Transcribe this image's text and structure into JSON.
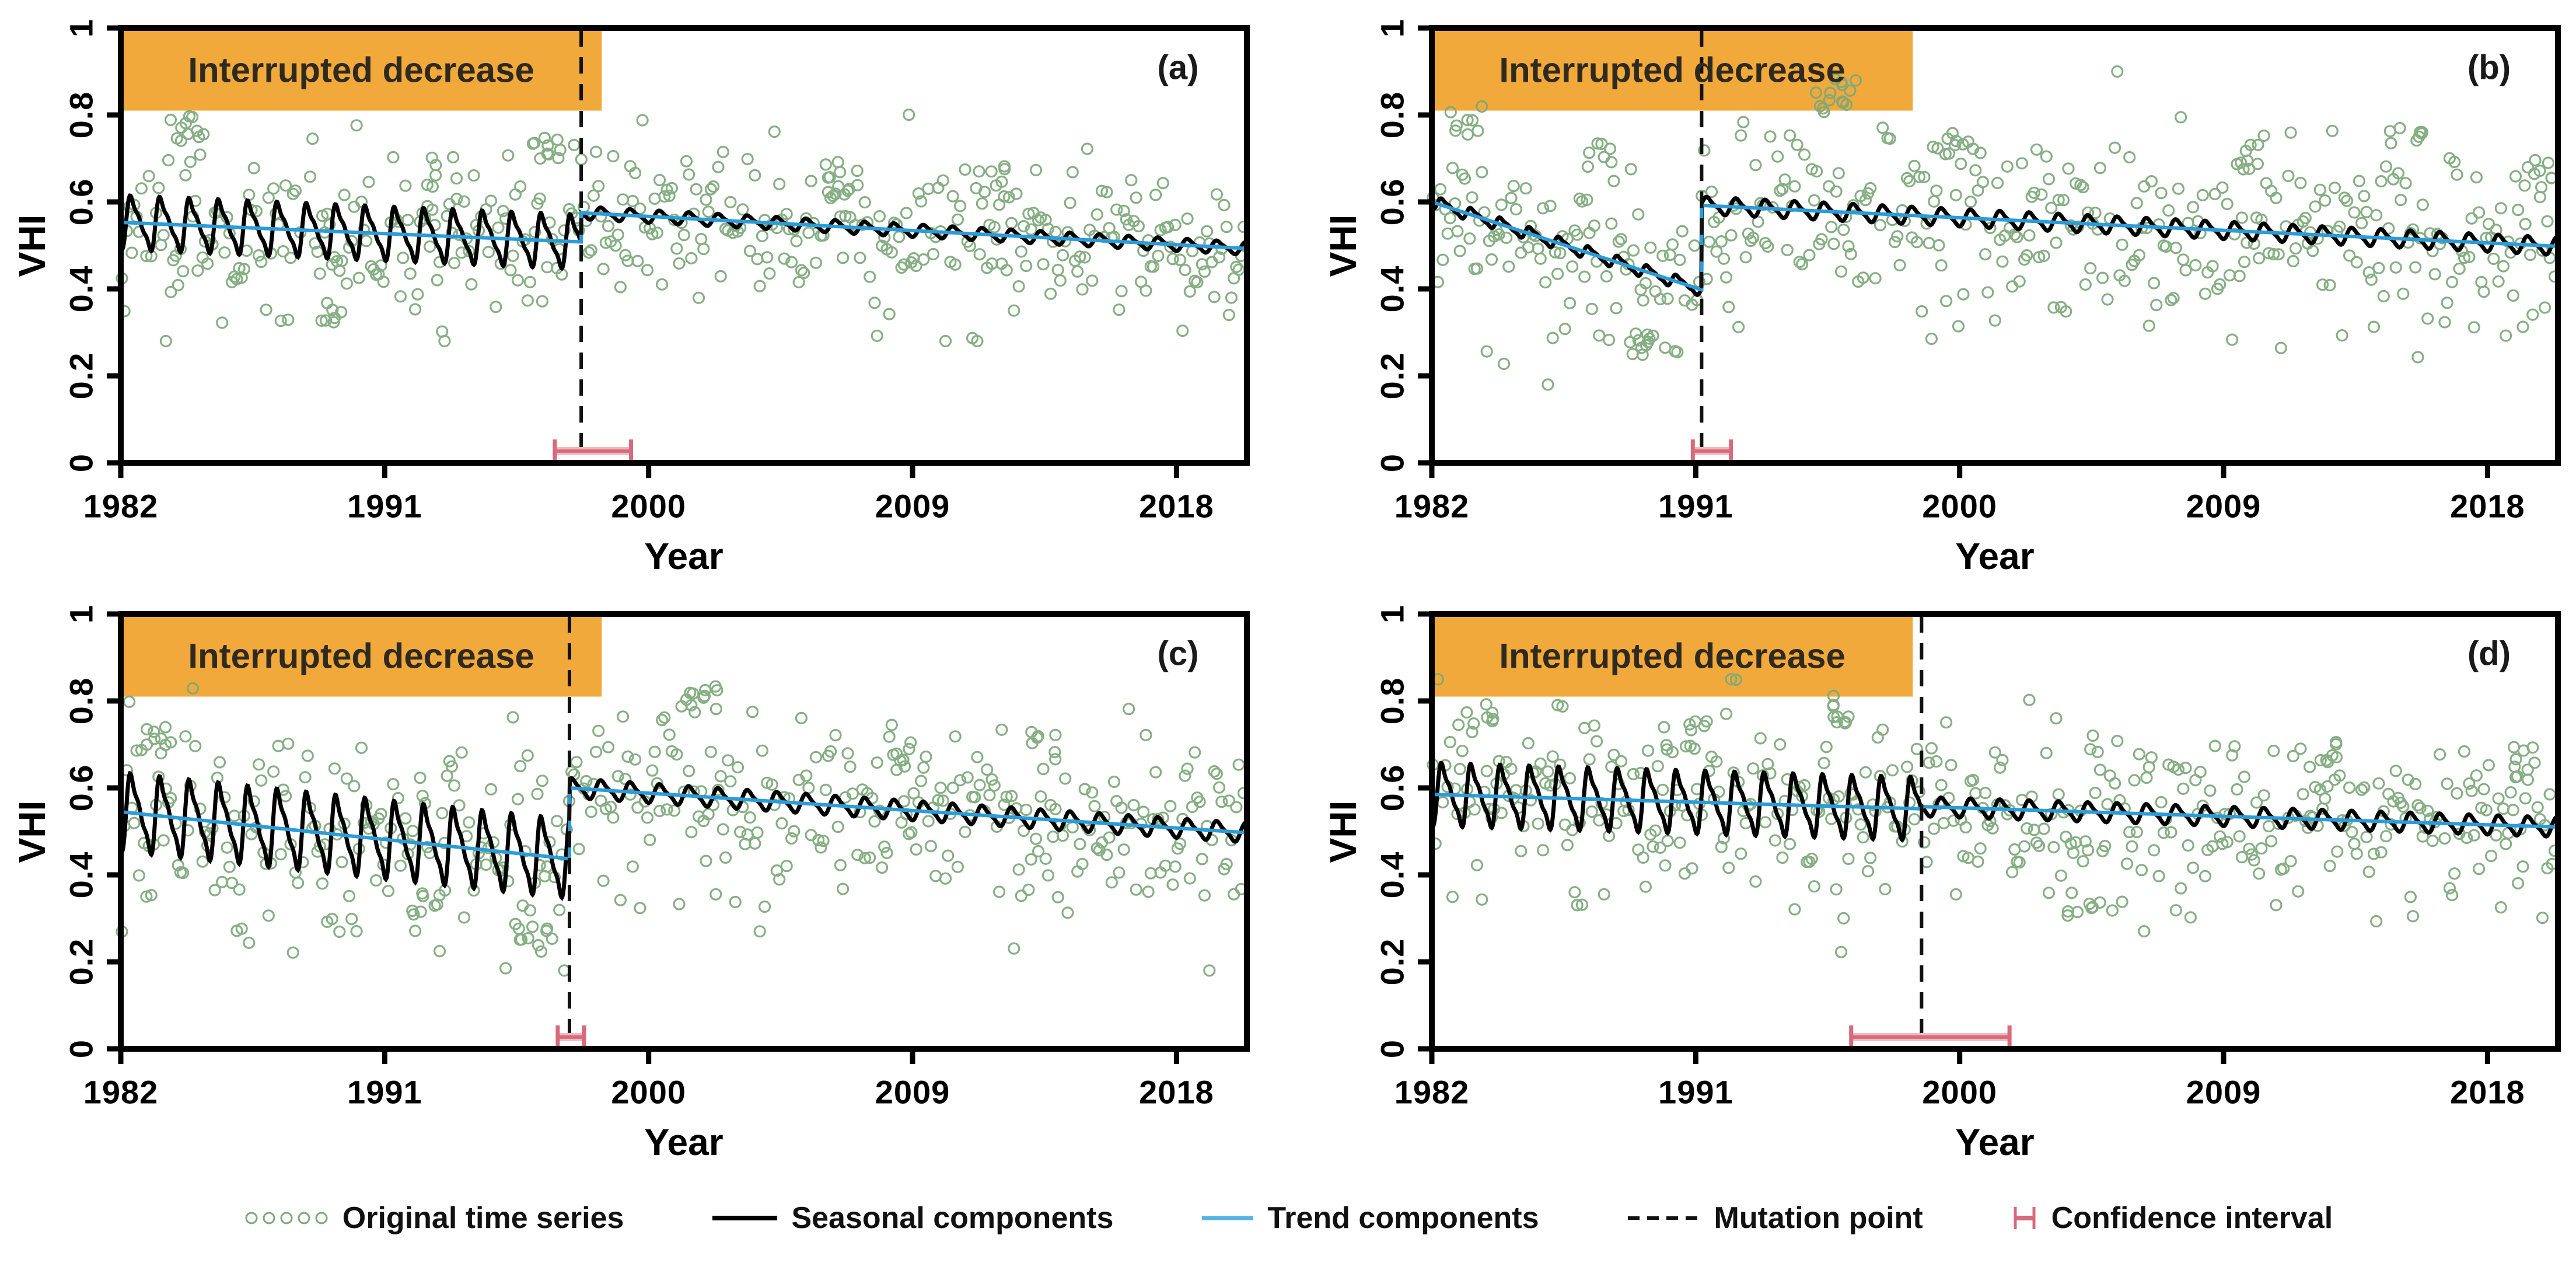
{
  "figure": {
    "background": "#FFFFFF"
  },
  "palette": {
    "orange_band": "#F2A93B",
    "scatter_green": "#7CA97A",
    "trend_blue": "#2B9CD8",
    "seasonal_black": "#000000",
    "mutation_dash": "#111111",
    "ci_rose": "#D76A7C",
    "ci_rose_light": "#F2B9C0",
    "axis_black": "#000000",
    "annotation_text": "#2F2A1F"
  },
  "chart_data": {
    "type": "line",
    "title": "",
    "xlabel": "Year",
    "ylabel": "VHI",
    "xlim": [
      1982,
      2020.4
    ],
    "ylim": [
      0,
      1
    ],
    "xticks": [
      1982,
      1991,
      2000,
      2009,
      2018
    ],
    "yticks": [
      {
        "label": "0",
        "value": 0
      },
      {
        "label": "0.2",
        "value": 0.2
      },
      {
        "label": "0.4",
        "value": 0.4
      },
      {
        "label": "0.6",
        "value": 0.6
      },
      {
        "label": "0.8",
        "value": 0.8
      },
      {
        "label": "1",
        "value": 1
      }
    ],
    "grid": false,
    "annotation": {
      "label": "Interrupted decrease",
      "x_range": [
        1982,
        1998.4
      ],
      "y_range": [
        0.81,
        1.0
      ]
    },
    "seasonal_waveform": {
      "pre_harmonics": [
        1,
        0.38,
        0.18
      ],
      "post_harmonics": [
        1,
        0.3
      ],
      "period_years": 1
    },
    "panels": [
      {
        "tag": "(a)",
        "mutation_year": 1997.7,
        "confidence_interval_years": [
          1996.8,
          1999.4
        ],
        "trend_pre": {
          "x": [
            1982,
            1997.7
          ],
          "y": [
            0.553,
            0.508
          ]
        },
        "trend_post": {
          "x": [
            1997.7,
            2020.4
          ],
          "y": [
            0.575,
            0.493
          ]
        },
        "seasonal_amplitude_pre": 0.062,
        "seasonal_amplitude_post": 0.013,
        "scatter": {
          "n_per_year": 12,
          "sd": 0.075,
          "seed": 11,
          "value_range": [
            0.28,
            0.83
          ],
          "clusters": [
            {
              "x": 1984.3,
              "y": 0.77,
              "n": 10
            },
            {
              "x": 1996.6,
              "y": 0.73,
              "n": 10
            },
            {
              "x": 1992.9,
              "y": 0.67,
              "n": 7
            },
            {
              "x": 2006.6,
              "y": 0.64,
              "n": 7
            },
            {
              "x": 2011.6,
              "y": 0.66,
              "n": 7
            },
            {
              "x": 1989.0,
              "y": 0.34,
              "n": 7
            }
          ]
        }
      },
      {
        "tag": "(b)",
        "mutation_year": 1991.2,
        "confidence_interval_years": [
          1990.9,
          1992.2
        ],
        "trend_pre": {
          "x": [
            1982,
            1991.2
          ],
          "y": [
            0.6,
            0.398
          ]
        },
        "trend_post": {
          "x": [
            1991.2,
            2020.4
          ],
          "y": [
            0.592,
            0.498
          ]
        },
        "seasonal_amplitude_pre": 0.015,
        "seasonal_amplitude_post": 0.018,
        "scatter": {
          "n_per_year": 12,
          "sd": 0.1,
          "seed": 22,
          "value_range": [
            0.18,
            0.9
          ],
          "clusters": [
            {
              "x": 1983.2,
              "y": 0.79,
              "n": 8
            },
            {
              "x": 1995.7,
              "y": 0.85,
              "n": 12
            },
            {
              "x": 1987.6,
              "y": 0.7,
              "n": 7
            },
            {
              "x": 1999.6,
              "y": 0.73,
              "n": 9
            },
            {
              "x": 2009.6,
              "y": 0.71,
              "n": 7
            },
            {
              "x": 2015.2,
              "y": 0.74,
              "n": 7
            },
            {
              "x": 1989.2,
              "y": 0.27,
              "n": 8
            },
            {
              "x": 2019.8,
              "y": 0.66,
              "n": 7
            }
          ]
        }
      },
      {
        "tag": "(c)",
        "mutation_year": 1997.3,
        "confidence_interval_years": [
          1996.9,
          1997.8
        ],
        "trend_pre": {
          "x": [
            1982,
            1997.3
          ],
          "y": [
            0.545,
            0.437
          ]
        },
        "trend_post": {
          "x": [
            1997.3,
            2020.4
          ],
          "y": [
            0.6,
            0.497
          ]
        },
        "seasonal_amplitude_pre": 0.09,
        "seasonal_amplitude_post": 0.02,
        "scatter": {
          "n_per_year": 12,
          "sd": 0.095,
          "seed": 33,
          "value_range": [
            0.18,
            0.88
          ],
          "clusters": [
            {
              "x": 2002.0,
              "y": 0.8,
              "n": 10
            },
            {
              "x": 1983.4,
              "y": 0.71,
              "n": 8
            },
            {
              "x": 2013.6,
              "y": 0.7,
              "n": 7
            },
            {
              "x": 1996.0,
              "y": 0.25,
              "n": 8
            },
            {
              "x": 2008.5,
              "y": 0.67,
              "n": 7
            },
            {
              "x": 1992.5,
              "y": 0.33,
              "n": 7
            }
          ]
        }
      },
      {
        "tag": "(d)",
        "mutation_year": 1998.7,
        "confidence_interval_years": [
          1996.3,
          2001.7
        ],
        "trend_pre": {
          "x": [
            1982,
            1998.7
          ],
          "y": [
            0.585,
            0.552
          ]
        },
        "trend_post": {
          "x": [
            1998.7,
            2020.4
          ],
          "y": [
            0.557,
            0.51
          ]
        },
        "seasonal_amplitude_pre": 0.072,
        "seasonal_amplitude_post": 0.02,
        "scatter": {
          "n_per_year": 12,
          "sd": 0.085,
          "seed": 44,
          "value_range": [
            0.2,
            0.85
          ],
          "clusters": [
            {
              "x": 1995.8,
              "y": 0.78,
              "n": 10
            },
            {
              "x": 1983.5,
              "y": 0.77,
              "n": 8
            },
            {
              "x": 1990.4,
              "y": 0.72,
              "n": 7
            },
            {
              "x": 2004.2,
              "y": 0.33,
              "n": 8
            },
            {
              "x": 2012.5,
              "y": 0.68,
              "n": 7
            },
            {
              "x": 2019.5,
              "y": 0.66,
              "n": 7
            }
          ]
        }
      }
    ]
  },
  "legend": {
    "items": [
      {
        "marker": "green-circles",
        "label": "Original time series"
      },
      {
        "marker": "black-line",
        "label": "Seasonal components"
      },
      {
        "marker": "blue-line",
        "label": "Trend components"
      },
      {
        "marker": "dashed-line",
        "label": "Mutation point"
      },
      {
        "marker": "red-h",
        "label": "Confidence interval"
      }
    ]
  }
}
